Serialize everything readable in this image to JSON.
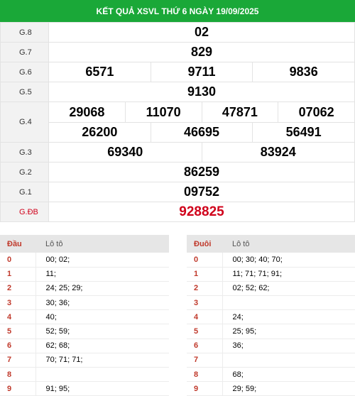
{
  "header": {
    "title": "KẾT QUẢ XSVL THỨ 6 NGÀY 19/09/2025"
  },
  "prizes": [
    {
      "label": "G.8",
      "numbers": [
        "02"
      ]
    },
    {
      "label": "G.7",
      "numbers": [
        "829"
      ]
    },
    {
      "label": "G.6",
      "numbers": [
        "6571",
        "9711",
        "9836"
      ]
    },
    {
      "label": "G.5",
      "numbers": [
        "9130"
      ]
    },
    {
      "label": "G.4",
      "row1": [
        "29068",
        "11070",
        "47871",
        "07062"
      ],
      "row2": [
        "26200",
        "46695",
        "56491"
      ]
    },
    {
      "label": "G.3",
      "numbers": [
        "69340",
        "83924"
      ]
    },
    {
      "label": "G.2",
      "numbers": [
        "86259"
      ]
    },
    {
      "label": "G.1",
      "numbers": [
        "09752"
      ]
    },
    {
      "label": "G.ĐB",
      "numbers": [
        "928825"
      ]
    }
  ],
  "loto_head": {
    "col1": "Đầu",
    "col2": "Lô tô",
    "rows": [
      {
        "k": "0",
        "v": "00; 02;"
      },
      {
        "k": "1",
        "v": "11;"
      },
      {
        "k": "2",
        "v": "24; 25; 29;"
      },
      {
        "k": "3",
        "v": "30; 36;"
      },
      {
        "k": "4",
        "v": "40;"
      },
      {
        "k": "5",
        "v": "52; 59;"
      },
      {
        "k": "6",
        "v": "62; 68;"
      },
      {
        "k": "7",
        "v": "70; 71; 71;"
      },
      {
        "k": "8",
        "v": ""
      },
      {
        "k": "9",
        "v": "91; 95;"
      }
    ]
  },
  "loto_tail": {
    "col1": "Đuôi",
    "col2": "Lô tô",
    "rows": [
      {
        "k": "0",
        "v": "00; 30; 40; 70;"
      },
      {
        "k": "1",
        "v": "11; 71; 71; 91;"
      },
      {
        "k": "2",
        "v": "02; 52; 62;"
      },
      {
        "k": "3",
        "v": ""
      },
      {
        "k": "4",
        "v": "24;"
      },
      {
        "k": "5",
        "v": "25; 95;"
      },
      {
        "k": "6",
        "v": "36;"
      },
      {
        "k": "7",
        "v": ""
      },
      {
        "k": "8",
        "v": "68;"
      },
      {
        "k": "9",
        "v": "29; 59;"
      }
    ]
  },
  "colors": {
    "header_bg": "#1aa838",
    "special_prize": "#d0021b"
  }
}
